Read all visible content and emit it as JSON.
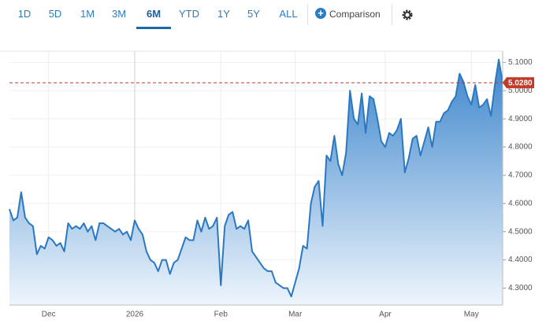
{
  "toolbar": {
    "ranges": [
      "1D",
      "5D",
      "1M",
      "3M",
      "6M",
      "YTD",
      "1Y",
      "5Y",
      "ALL"
    ],
    "comparison": "Comparison"
  },
  "chart_data": {
    "type": "area",
    "categories": [
      null,
      null,
      null,
      null,
      null,
      null,
      null,
      null,
      null,
      null,
      "Dec",
      null,
      null,
      null,
      null,
      null,
      null,
      null,
      null,
      null,
      null,
      null,
      null,
      null,
      null,
      null,
      null,
      null,
      null,
      null,
      null,
      null,
      "2026",
      null,
      null,
      null,
      null,
      null,
      null,
      null,
      null,
      null,
      null,
      null,
      null,
      null,
      null,
      null,
      null,
      null,
      null,
      null,
      null,
      null,
      "Feb",
      null,
      null,
      null,
      null,
      null,
      null,
      null,
      null,
      null,
      null,
      null,
      null,
      null,
      null,
      null,
      null,
      null,
      null,
      "Mar",
      null,
      null,
      null,
      null,
      null,
      null,
      null,
      null,
      null,
      null,
      null,
      null,
      null,
      null,
      null,
      null,
      null,
      null,
      null,
      null,
      null,
      null,
      "Apr",
      null,
      null,
      null,
      null,
      null,
      null,
      null,
      null,
      null,
      null,
      null,
      null,
      null,
      null,
      null,
      null,
      null,
      null,
      null,
      null,
      null,
      "May",
      null,
      null,
      null,
      null,
      null,
      null,
      null,
      null
    ],
    "values": [
      4.58,
      4.54,
      4.55,
      4.64,
      4.55,
      4.53,
      4.52,
      4.42,
      4.45,
      4.44,
      4.48,
      4.47,
      4.45,
      4.46,
      4.43,
      4.53,
      4.51,
      4.52,
      4.51,
      4.53,
      4.5,
      4.52,
      4.47,
      4.53,
      4.53,
      4.52,
      4.51,
      4.5,
      4.51,
      4.49,
      4.5,
      4.47,
      4.54,
      4.51,
      4.49,
      4.43,
      4.4,
      4.39,
      4.36,
      4.4,
      4.4,
      4.35,
      4.39,
      4.4,
      4.44,
      4.48,
      4.47,
      4.47,
      4.54,
      4.5,
      4.55,
      4.51,
      4.52,
      4.55,
      4.31,
      4.52,
      4.56,
      4.57,
      4.51,
      4.52,
      4.51,
      4.54,
      4.43,
      4.41,
      4.39,
      4.37,
      4.36,
      4.36,
      4.32,
      4.31,
      4.3,
      4.3,
      4.27,
      4.32,
      4.37,
      4.45,
      4.44,
      4.6,
      4.66,
      4.68,
      4.52,
      4.77,
      4.75,
      4.84,
      4.74,
      4.7,
      4.78,
      5.0,
      4.9,
      4.88,
      4.99,
      4.85,
      4.98,
      4.97,
      4.9,
      4.82,
      4.8,
      4.85,
      4.84,
      4.86,
      4.9,
      4.71,
      4.76,
      4.83,
      4.84,
      4.77,
      4.82,
      4.87,
      4.8,
      4.89,
      4.89,
      4.92,
      4.93,
      4.96,
      4.98,
      5.06,
      5.03,
      4.98,
      4.95,
      5.02,
      4.94,
      4.95,
      4.97,
      4.91,
      5.02,
      5.11,
      5.028
    ],
    "color": "#2b78c2",
    "ylim": [
      4.24,
      5.14
    ],
    "yticks": [
      {
        "value": 4.3,
        "label": "4.3000"
      },
      {
        "value": 4.4,
        "label": "4.4000"
      },
      {
        "value": 4.5,
        "label": "4.5000"
      },
      {
        "value": 4.6,
        "label": "4.6000"
      },
      {
        "value": 4.7,
        "label": "4.7000"
      },
      {
        "value": 4.8,
        "label": "4.8000"
      },
      {
        "value": 4.9,
        "label": "4.9000"
      },
      {
        "value": 5.0,
        "label": "5.0000"
      },
      {
        "value": 5.1,
        "label": "5.1000"
      }
    ],
    "reference_line": {
      "value": 5.028,
      "label": "5.0280",
      "color": "#c0392b"
    },
    "grid": true
  }
}
